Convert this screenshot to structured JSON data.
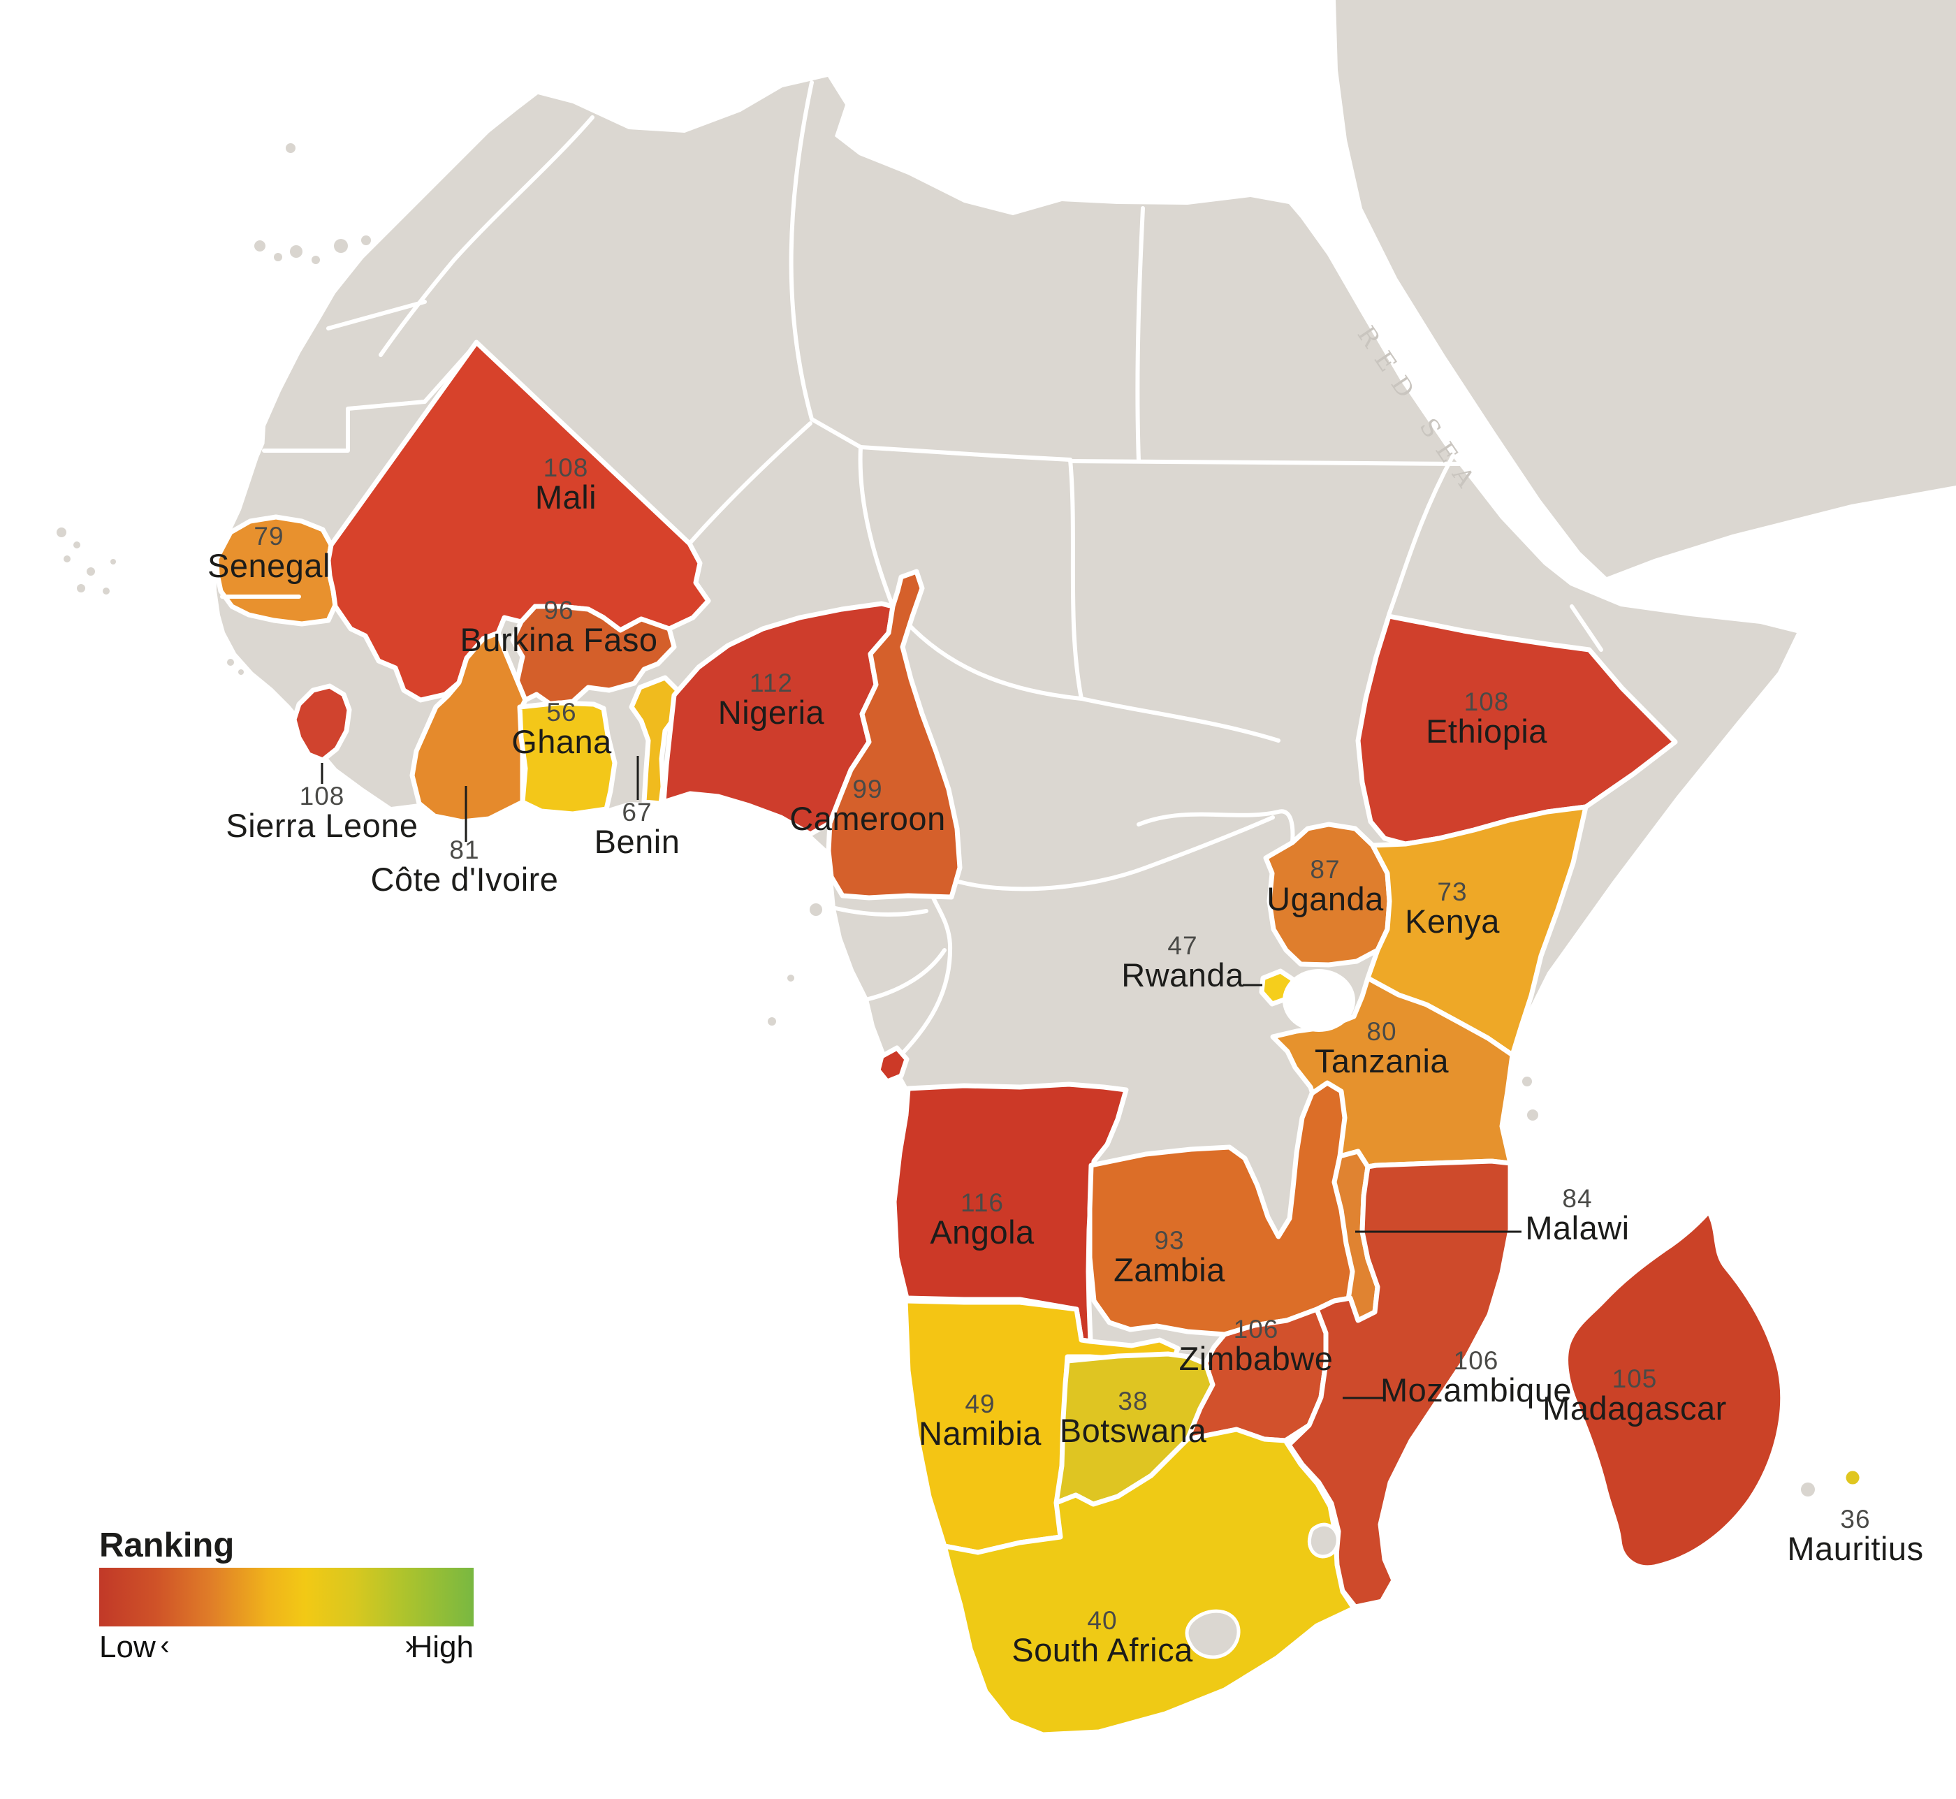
{
  "map": {
    "sea_label": "RED SEA",
    "base_land_color": "#dbd7d1",
    "border_color": "#ffffff",
    "background_color": "#ffffff"
  },
  "legend": {
    "title": "Ranking",
    "low_label": "Low",
    "high_label": "High",
    "left_arrow": "‹",
    "right_arrow": "›",
    "gradient": [
      "#c13928",
      "#cf5228",
      "#e07e28",
      "#f0b31b",
      "#f2c915",
      "#d9c81f",
      "#acc32d",
      "#79b841"
    ]
  },
  "chart_data": {
    "type": "choropleth-map",
    "title": "Ranking",
    "scale": {
      "low": "Low",
      "high": "High",
      "note": "red = low ranking, green = high ranking"
    },
    "region": "Africa"
  },
  "countries": [
    {
      "id": "senegal",
      "name": "Senegal",
      "rank": 79,
      "color": "#e8912e"
    },
    {
      "id": "mali",
      "name": "Mali",
      "rank": 108,
      "color": "#d7422b"
    },
    {
      "id": "burkina-faso",
      "name": "Burkina Faso",
      "rank": 96,
      "color": "#d45f2a"
    },
    {
      "id": "sierra-leone",
      "name": "Sierra Leone",
      "rank": 108,
      "color": "#d0432e"
    },
    {
      "id": "cote-divoire",
      "name": "Côte d'Ivoire",
      "rank": 81,
      "color": "#e58a2c"
    },
    {
      "id": "ghana",
      "name": "Ghana",
      "rank": 56,
      "color": "#f3c719"
    },
    {
      "id": "benin",
      "name": "Benin",
      "rank": 67,
      "color": "#f0bb1e"
    },
    {
      "id": "nigeria",
      "name": "Nigeria",
      "rank": 112,
      "color": "#ce3d2c"
    },
    {
      "id": "cameroon",
      "name": "Cameroon",
      "rank": 99,
      "color": "#d5602b"
    },
    {
      "id": "ethiopia",
      "name": "Ethiopia",
      "rank": 108,
      "color": "#d0402c"
    },
    {
      "id": "uganda",
      "name": "Uganda",
      "rank": 87,
      "color": "#df7e2d"
    },
    {
      "id": "kenya",
      "name": "Kenya",
      "rank": 73,
      "color": "#eea827"
    },
    {
      "id": "rwanda",
      "name": "Rwanda",
      "rank": 47,
      "color": "#f5ce1c"
    },
    {
      "id": "tanzania",
      "name": "Tanzania",
      "rank": 80,
      "color": "#e6922d"
    },
    {
      "id": "angola",
      "name": "Angola",
      "rank": 116,
      "color": "#cc3927"
    },
    {
      "id": "zambia",
      "name": "Zambia",
      "rank": 93,
      "color": "#dc6e28"
    },
    {
      "id": "malawi",
      "name": "Malawi",
      "rank": 84,
      "color": "#e08331"
    },
    {
      "id": "zimbabwe",
      "name": "Zimbabwe",
      "rank": 106,
      "color": "#d2512c"
    },
    {
      "id": "mozambique",
      "name": "Mozambique",
      "rank": 106,
      "color": "#ce4a2b"
    },
    {
      "id": "madagascar",
      "name": "Madagascar",
      "rank": 105,
      "color": "#cb4227"
    },
    {
      "id": "namibia",
      "name": "Namibia",
      "rank": 49,
      "color": "#f4c514"
    },
    {
      "id": "botswana",
      "name": "Botswana",
      "rank": 38,
      "color": "#dfc522"
    },
    {
      "id": "south-africa",
      "name": "South Africa",
      "rank": 40,
      "color": "#efca15"
    },
    {
      "id": "mauritius",
      "name": "Mauritius",
      "rank": 36,
      "color": "#e0c61f"
    }
  ]
}
